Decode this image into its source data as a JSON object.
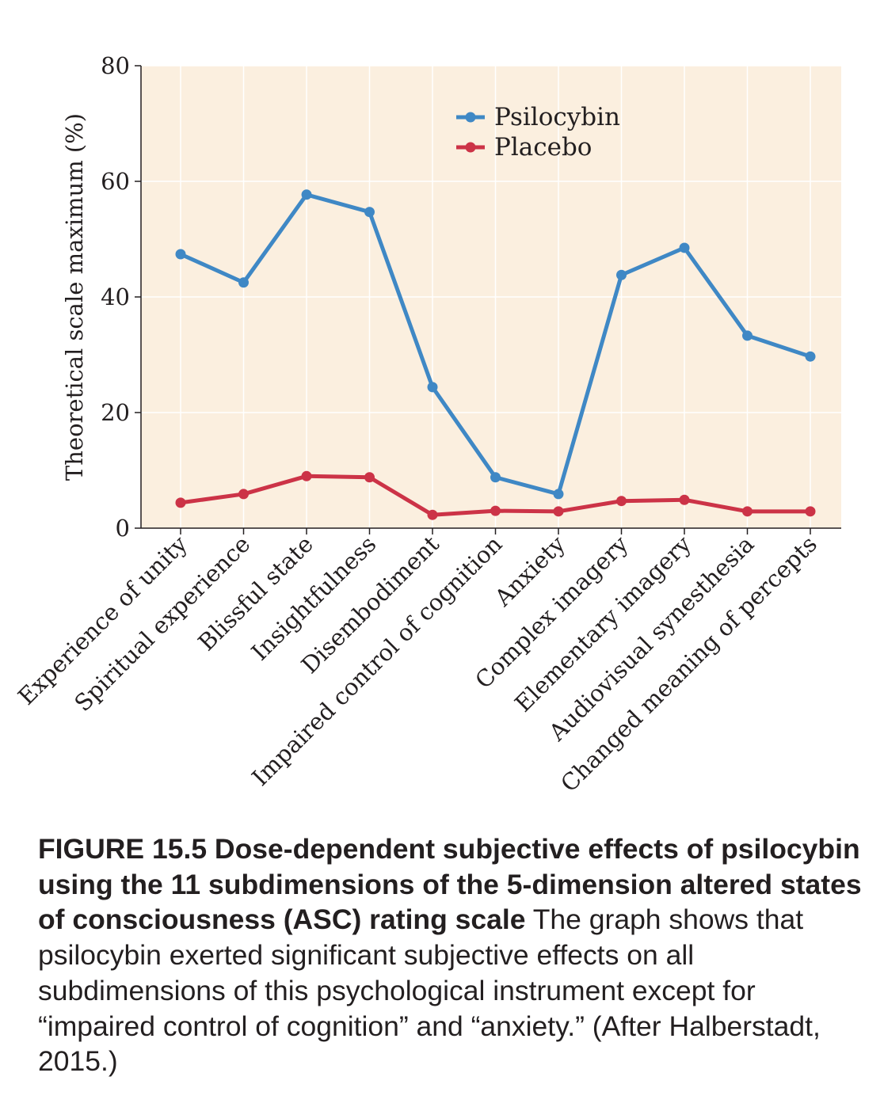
{
  "chart_data": {
    "type": "line",
    "categories": [
      "Experience of unity",
      "Spiritual experience",
      "Blissful state",
      "Insightfulness",
      "Disembodiment",
      "Impaired control of cognition",
      "Anxiety",
      "Complex imagery",
      "Elementary imagery",
      "Audiovisual synesthesia",
      "Changed meaning of percepts"
    ],
    "series": [
      {
        "name": "Psilocybin",
        "color": "#3f88c5",
        "values": [
          47.4,
          42.5,
          57.7,
          54.7,
          24.4,
          8.8,
          5.9,
          43.8,
          48.5,
          33.3,
          29.7
        ]
      },
      {
        "name": "Placebo",
        "color": "#cc3347",
        "values": [
          4.4,
          5.9,
          9.0,
          8.8,
          2.3,
          3.0,
          2.9,
          4.7,
          4.9,
          2.9,
          2.9
        ]
      }
    ],
    "ylabel": "Theoretical scale maximum (%)",
    "xlabel": "",
    "ylim": [
      0,
      80
    ],
    "yticks": [
      "0",
      "20",
      "40",
      "60",
      "80"
    ],
    "grid": true,
    "legend_position": "top-center",
    "background": "#fbefdf"
  },
  "caption": {
    "bold": "FIGURE 15.5  Dose-dependent subjective effects of psilocybin using the 11 subdimensions of the 5-dimension altered states of consciousness (ASC) rating scale",
    "text": "  The graph shows that psilocybin exerted significant subjective effects on all subdimensions of this psychological instrument except for “impaired control of cognition” and “anxiety.” (After Halberstadt, 2015.)"
  }
}
